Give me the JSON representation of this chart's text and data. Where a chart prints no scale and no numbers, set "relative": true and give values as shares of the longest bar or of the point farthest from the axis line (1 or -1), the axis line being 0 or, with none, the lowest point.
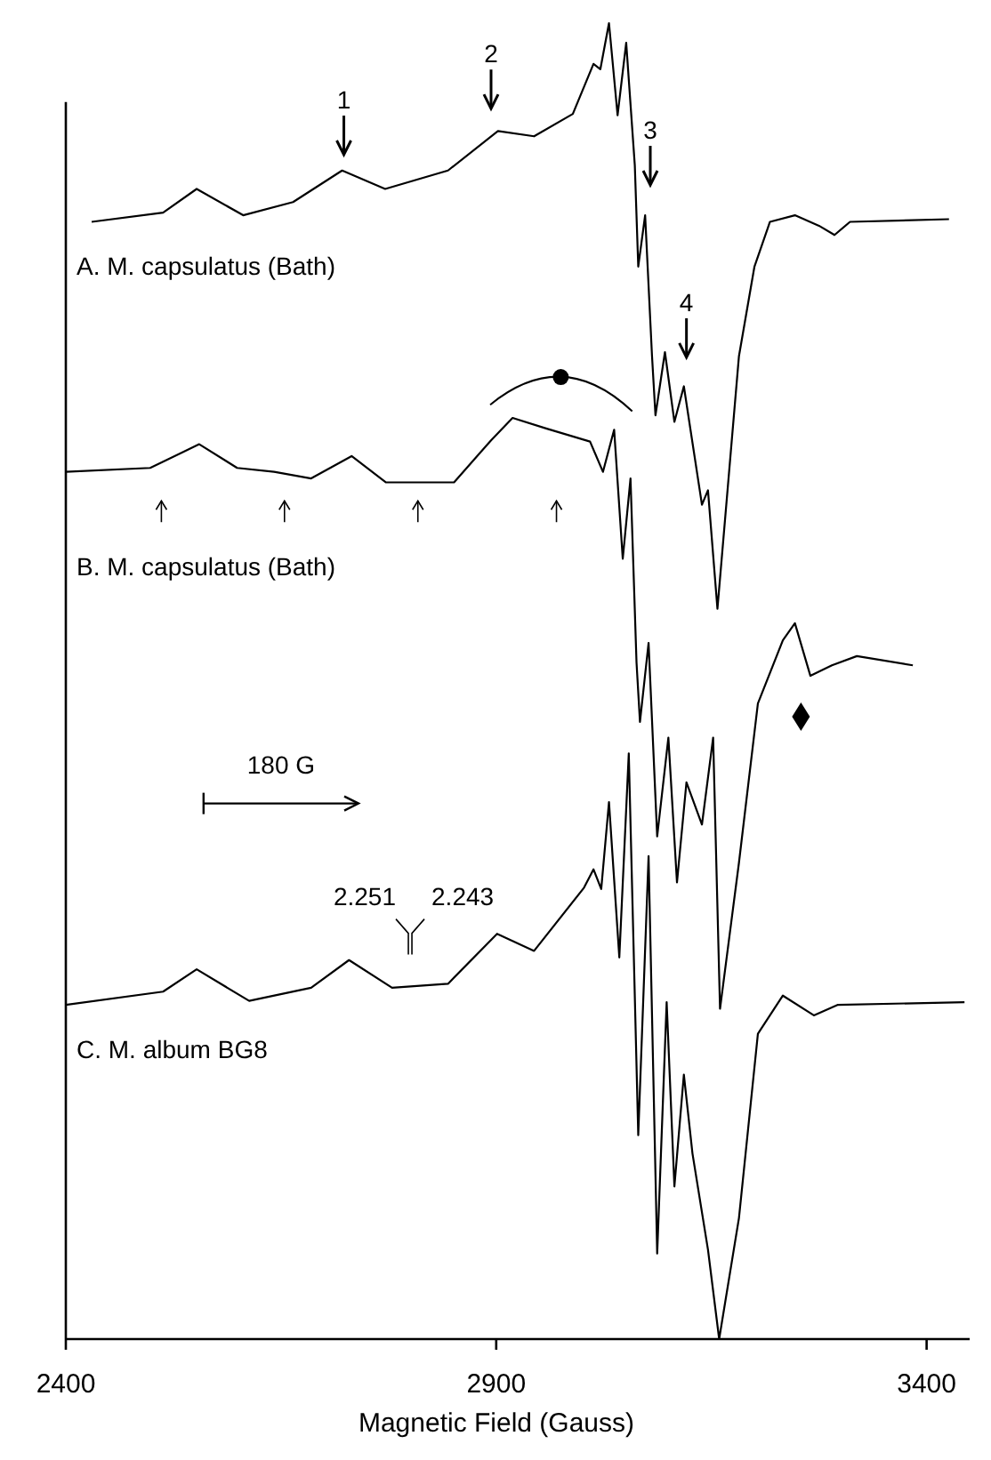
{
  "chart_data": {
    "type": "line",
    "relative": true,
    "xlabel": "Magnetic Field (Gauss)",
    "xlim": [
      2400,
      3450
    ],
    "xticks": [
      2400,
      2900,
      3400
    ],
    "grid": false,
    "marker": "none",
    "line_style": "solid",
    "series": [
      {
        "name": "A.  M. capsulatus (Bath)",
        "color": "#000000",
        "x": [
          2430,
          2513,
          2552,
          2606,
          2664,
          2721,
          2771,
          2844,
          2902,
          2944,
          2989,
          3013,
          3021,
          3031,
          3041,
          3051,
          3061,
          3065,
          3073,
          3081,
          3085,
          3096,
          3107,
          3118,
          3139,
          3146,
          3157,
          3182,
          3200,
          3218,
          3247,
          3275,
          3293,
          3311,
          3426
        ],
        "values": [
          0.849,
          0.856,
          0.874,
          0.854,
          0.864,
          0.888,
          0.874,
          0.888,
          0.918,
          0.914,
          0.931,
          0.969,
          0.965,
          1.0,
          0.93,
          0.985,
          0.892,
          0.815,
          0.854,
          0.747,
          0.702,
          0.75,
          0.697,
          0.724,
          0.634,
          0.645,
          0.555,
          0.747,
          0.815,
          0.849,
          0.854,
          0.846,
          0.839,
          0.849,
          0.851
        ]
      },
      {
        "name": "B.  M. capsulatus (Bath)",
        "color": "#000000",
        "x": [
          2400,
          2498,
          2555,
          2599,
          2642,
          2685,
          2732,
          2772,
          2851,
          2894,
          2919,
          2958,
          3009,
          3024,
          3037,
          3047,
          3056,
          3063,
          3067,
          3077,
          3087,
          3100,
          3110,
          3121,
          3139,
          3152,
          3160,
          3182,
          3204,
          3233,
          3247,
          3265,
          3290,
          3319,
          3384
        ],
        "values": [
          0.659,
          0.662,
          0.68,
          0.662,
          0.659,
          0.654,
          0.671,
          0.651,
          0.651,
          0.683,
          0.7,
          0.692,
          0.682,
          0.659,
          0.691,
          0.593,
          0.654,
          0.514,
          0.469,
          0.529,
          0.382,
          0.457,
          0.347,
          0.423,
          0.391,
          0.457,
          0.251,
          0.362,
          0.483,
          0.531,
          0.544,
          0.504,
          0.512,
          0.519,
          0.512
        ]
      },
      {
        "name": "C.  M. album BG8",
        "color": "#000000",
        "x": [
          2400,
          2513,
          2552,
          2613,
          2685,
          2729,
          2779,
          2844,
          2901,
          2944,
          3002,
          3013,
          3022,
          3031,
          3043,
          3054,
          3065,
          3077,
          3087,
          3098,
          3107,
          3118,
          3128,
          3146,
          3159,
          3182,
          3204,
          3233,
          3269,
          3297,
          3444
        ],
        "values": [
          0.254,
          0.264,
          0.281,
          0.257,
          0.267,
          0.288,
          0.267,
          0.27,
          0.308,
          0.295,
          0.343,
          0.357,
          0.342,
          0.408,
          0.29,
          0.445,
          0.155,
          0.367,
          0.065,
          0.256,
          0.116,
          0.201,
          0.141,
          0.068,
          0,
          0.092,
          0.232,
          0.261,
          0.246,
          0.254,
          0.256
        ]
      }
    ],
    "annotations": [
      "1",
      "2",
      "3",
      "4",
      "180 G",
      "2.251",
      "2.243"
    ]
  }
}
